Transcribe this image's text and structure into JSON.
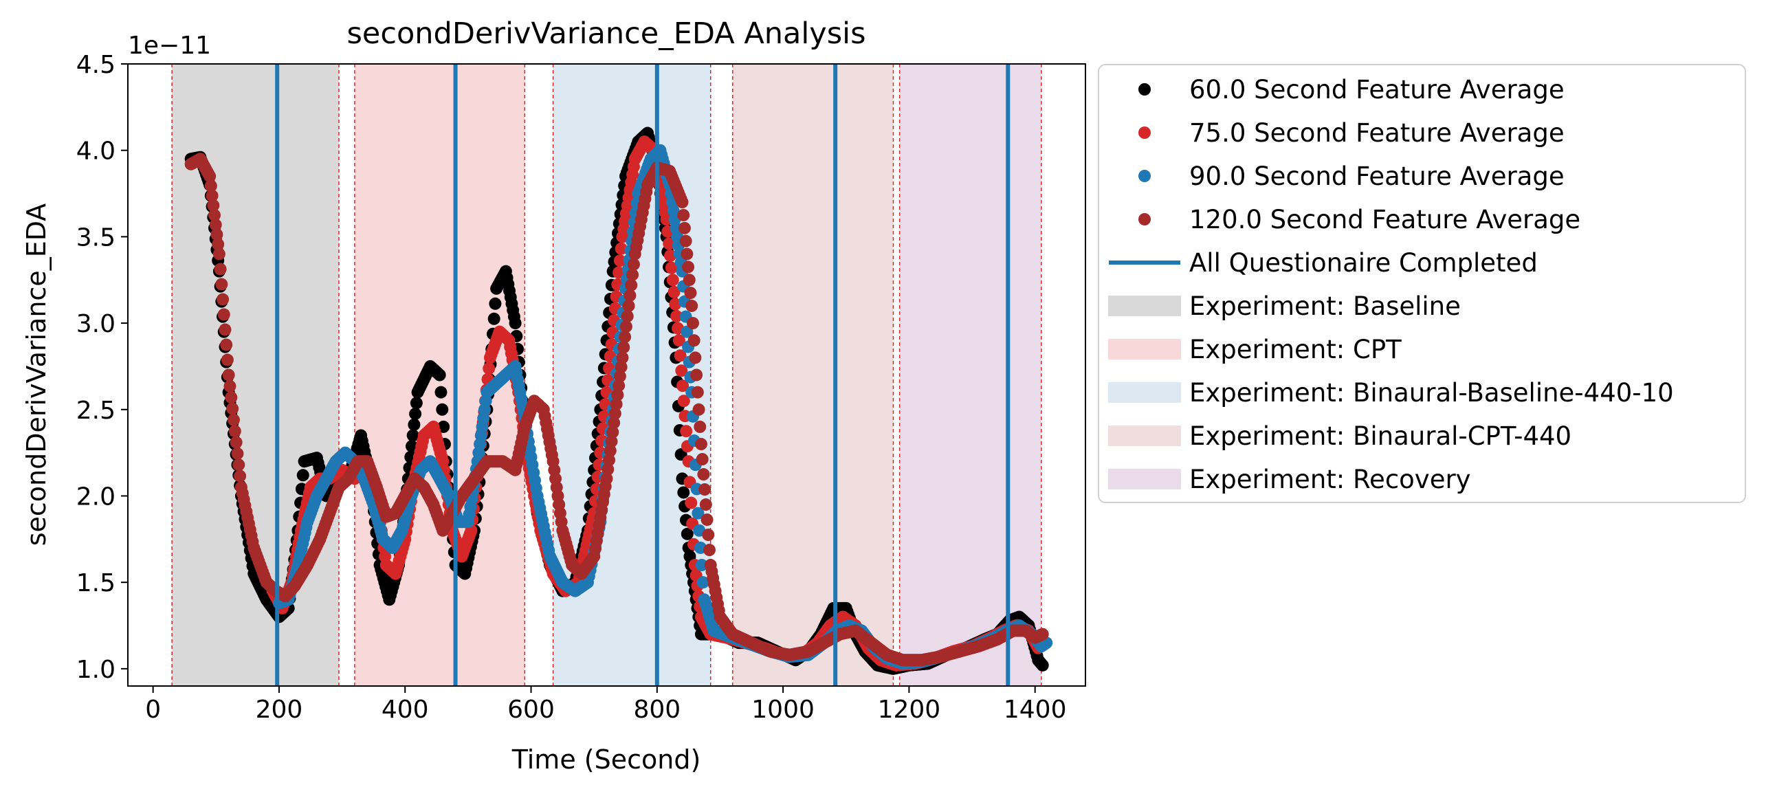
{
  "chart_data": {
    "type": "scatter",
    "title": "secondDerivVariance_EDA Analysis",
    "xlabel": "Time (Second)",
    "ylabel": "secondDerivVariance_EDA",
    "offset_label": "1e−11",
    "xlim": [
      -40,
      1480
    ],
    "ylim": [
      0.9,
      4.5
    ],
    "xticks": [
      0,
      200,
      400,
      600,
      800,
      1000,
      1200,
      1400
    ],
    "yticks": [
      1.0,
      1.5,
      2.0,
      2.5,
      3.0,
      3.5,
      4.0,
      4.5
    ],
    "grid": false,
    "legend_position": "outside-right",
    "phases": [
      {
        "name": "Experiment: Baseline",
        "start": 30,
        "end": 295,
        "color": "#d9d9d9"
      },
      {
        "name": "Experiment: CPT",
        "start": 320,
        "end": 590,
        "color": "#f8d8d9"
      },
      {
        "name": "Experiment: Binaural-Baseline-440-10",
        "start": 635,
        "end": 885,
        "color": "#dce8f2"
      },
      {
        "name": "Experiment: Binaural-CPT-440",
        "start": 920,
        "end": 1175,
        "color": "#efdedd"
      },
      {
        "name": "Experiment: Recovery",
        "start": 1185,
        "end": 1410,
        "color": "#eadbea"
      }
    ],
    "questionnaire_lines": {
      "name": "All Questionaire Completed",
      "x": [
        197,
        480,
        800,
        1083,
        1357
      ],
      "color": "#1f77b4"
    },
    "series": [
      {
        "name": "60.0 Second Feature Average",
        "color": "#000000",
        "points": [
          [
            60,
            3.95
          ],
          [
            75,
            3.96
          ],
          [
            90,
            3.8
          ],
          [
            105,
            3.3
          ],
          [
            120,
            2.6
          ],
          [
            140,
            2.0
          ],
          [
            160,
            1.55
          ],
          [
            180,
            1.4
          ],
          [
            200,
            1.3
          ],
          [
            215,
            1.35
          ],
          [
            230,
            1.8
          ],
          [
            240,
            2.2
          ],
          [
            260,
            2.22
          ],
          [
            275,
            2.0
          ],
          [
            290,
            2.05
          ],
          [
            310,
            2.1
          ],
          [
            330,
            2.35
          ],
          [
            345,
            2.1
          ],
          [
            360,
            1.6
          ],
          [
            375,
            1.4
          ],
          [
            390,
            1.6
          ],
          [
            405,
            2.1
          ],
          [
            420,
            2.6
          ],
          [
            440,
            2.75
          ],
          [
            455,
            2.7
          ],
          [
            465,
            2.2
          ],
          [
            480,
            1.6
          ],
          [
            495,
            1.55
          ],
          [
            510,
            1.8
          ],
          [
            530,
            2.5
          ],
          [
            545,
            3.2
          ],
          [
            560,
            3.3
          ],
          [
            575,
            3.0
          ],
          [
            590,
            2.4
          ],
          [
            610,
            1.9
          ],
          [
            630,
            1.6
          ],
          [
            650,
            1.45
          ],
          [
            670,
            1.5
          ],
          [
            690,
            1.8
          ],
          [
            710,
            2.5
          ],
          [
            730,
            3.3
          ],
          [
            750,
            3.85
          ],
          [
            770,
            4.05
          ],
          [
            785,
            4.1
          ],
          [
            800,
            3.9
          ],
          [
            815,
            3.5
          ],
          [
            830,
            2.8
          ],
          [
            840,
            2.1
          ],
          [
            850,
            1.7
          ],
          [
            860,
            1.45
          ],
          [
            870,
            1.2
          ],
          [
            900,
            1.2
          ],
          [
            930,
            1.15
          ],
          [
            960,
            1.15
          ],
          [
            990,
            1.1
          ],
          [
            1020,
            1.05
          ],
          [
            1040,
            1.1
          ],
          [
            1060,
            1.2
          ],
          [
            1080,
            1.35
          ],
          [
            1100,
            1.35
          ],
          [
            1115,
            1.2
          ],
          [
            1130,
            1.1
          ],
          [
            1150,
            1.02
          ],
          [
            1175,
            1.0
          ],
          [
            1200,
            1.02
          ],
          [
            1230,
            1.03
          ],
          [
            1260,
            1.08
          ],
          [
            1290,
            1.12
          ],
          [
            1320,
            1.17
          ],
          [
            1340,
            1.2
          ],
          [
            1360,
            1.28
          ],
          [
            1375,
            1.3
          ],
          [
            1390,
            1.25
          ],
          [
            1405,
            1.05
          ],
          [
            1412,
            1.02
          ]
        ]
      },
      {
        "name": "75.0 Second Feature Average",
        "color": "#d62728",
        "points": [
          [
            190,
            1.45
          ],
          [
            205,
            1.35
          ],
          [
            220,
            1.5
          ],
          [
            235,
            1.8
          ],
          [
            250,
            2.05
          ],
          [
            265,
            2.1
          ],
          [
            280,
            2.1
          ],
          [
            300,
            2.15
          ],
          [
            320,
            2.1
          ],
          [
            340,
            2.2
          ],
          [
            355,
            2.0
          ],
          [
            370,
            1.6
          ],
          [
            385,
            1.55
          ],
          [
            400,
            1.75
          ],
          [
            415,
            2.1
          ],
          [
            430,
            2.35
          ],
          [
            445,
            2.4
          ],
          [
            460,
            2.2
          ],
          [
            475,
            1.8
          ],
          [
            490,
            1.65
          ],
          [
            505,
            1.8
          ],
          [
            520,
            2.3
          ],
          [
            535,
            2.8
          ],
          [
            550,
            2.95
          ],
          [
            565,
            2.9
          ],
          [
            580,
            2.6
          ],
          [
            595,
            2.2
          ],
          [
            615,
            1.8
          ],
          [
            635,
            1.55
          ],
          [
            655,
            1.45
          ],
          [
            675,
            1.5
          ],
          [
            700,
            1.9
          ],
          [
            720,
            2.6
          ],
          [
            745,
            3.5
          ],
          [
            765,
            3.95
          ],
          [
            780,
            4.05
          ],
          [
            795,
            4.0
          ],
          [
            815,
            3.6
          ],
          [
            835,
            2.9
          ],
          [
            850,
            2.2
          ],
          [
            860,
            1.6
          ],
          [
            870,
            1.3
          ],
          [
            885,
            1.2
          ],
          [
            910,
            1.18
          ],
          [
            940,
            1.15
          ],
          [
            970,
            1.12
          ],
          [
            1000,
            1.08
          ],
          [
            1030,
            1.08
          ],
          [
            1055,
            1.15
          ],
          [
            1075,
            1.25
          ],
          [
            1095,
            1.3
          ],
          [
            1115,
            1.25
          ],
          [
            1135,
            1.12
          ],
          [
            1155,
            1.05
          ],
          [
            1180,
            1.02
          ],
          [
            1210,
            1.03
          ],
          [
            1240,
            1.06
          ],
          [
            1270,
            1.1
          ],
          [
            1300,
            1.13
          ],
          [
            1330,
            1.18
          ],
          [
            1350,
            1.22
          ],
          [
            1370,
            1.25
          ],
          [
            1390,
            1.22
          ],
          [
            1405,
            1.12
          ],
          [
            1415,
            1.15
          ]
        ]
      },
      {
        "name": "90.0 Second Feature Average",
        "color": "#1f77b4",
        "points": [
          [
            200,
            1.38
          ],
          [
            215,
            1.4
          ],
          [
            230,
            1.6
          ],
          [
            245,
            1.85
          ],
          [
            260,
            2.0
          ],
          [
            275,
            2.1
          ],
          [
            290,
            2.2
          ],
          [
            305,
            2.25
          ],
          [
            320,
            2.2
          ],
          [
            335,
            2.1
          ],
          [
            350,
            1.95
          ],
          [
            365,
            1.75
          ],
          [
            380,
            1.7
          ],
          [
            395,
            1.8
          ],
          [
            410,
            2.0
          ],
          [
            425,
            2.15
          ],
          [
            440,
            2.2
          ],
          [
            455,
            2.1
          ],
          [
            470,
            2.0
          ],
          [
            485,
            1.85
          ],
          [
            500,
            1.85
          ],
          [
            515,
            2.2
          ],
          [
            530,
            2.6
          ],
          [
            545,
            2.65
          ],
          [
            560,
            2.7
          ],
          [
            575,
            2.75
          ],
          [
            590,
            2.45
          ],
          [
            610,
            2.0
          ],
          [
            630,
            1.65
          ],
          [
            650,
            1.5
          ],
          [
            670,
            1.45
          ],
          [
            690,
            1.5
          ],
          [
            710,
            1.85
          ],
          [
            730,
            2.5
          ],
          [
            750,
            3.2
          ],
          [
            770,
            3.75
          ],
          [
            790,
            3.95
          ],
          [
            805,
            4.0
          ],
          [
            820,
            3.8
          ],
          [
            840,
            3.3
          ],
          [
            855,
            2.6
          ],
          [
            865,
            1.9
          ],
          [
            875,
            1.4
          ],
          [
            890,
            1.22
          ],
          [
            920,
            1.18
          ],
          [
            950,
            1.14
          ],
          [
            980,
            1.1
          ],
          [
            1010,
            1.07
          ],
          [
            1040,
            1.08
          ],
          [
            1065,
            1.15
          ],
          [
            1085,
            1.22
          ],
          [
            1105,
            1.25
          ],
          [
            1125,
            1.22
          ],
          [
            1145,
            1.12
          ],
          [
            1165,
            1.06
          ],
          [
            1190,
            1.03
          ],
          [
            1220,
            1.04
          ],
          [
            1250,
            1.07
          ],
          [
            1280,
            1.1
          ],
          [
            1310,
            1.14
          ],
          [
            1335,
            1.18
          ],
          [
            1355,
            1.22
          ],
          [
            1375,
            1.25
          ],
          [
            1395,
            1.2
          ],
          [
            1410,
            1.13
          ],
          [
            1418,
            1.15
          ]
        ]
      },
      {
        "name": "120.0 Second Feature Average",
        "color": "#a52a2a",
        "points": [
          [
            60,
            3.92
          ],
          [
            75,
            3.95
          ],
          [
            90,
            3.85
          ],
          [
            105,
            3.4
          ],
          [
            120,
            2.7
          ],
          [
            140,
            2.05
          ],
          [
            160,
            1.7
          ],
          [
            180,
            1.5
          ],
          [
            195,
            1.45
          ],
          [
            210,
            1.42
          ],
          [
            225,
            1.48
          ],
          [
            245,
            1.6
          ],
          [
            265,
            1.75
          ],
          [
            280,
            1.9
          ],
          [
            295,
            2.05
          ],
          [
            310,
            2.1
          ],
          [
            325,
            2.2
          ],
          [
            340,
            2.2
          ],
          [
            355,
            2.05
          ],
          [
            370,
            1.88
          ],
          [
            385,
            1.9
          ],
          [
            400,
            2.0
          ],
          [
            415,
            2.1
          ],
          [
            430,
            2.05
          ],
          [
            445,
            1.95
          ],
          [
            460,
            1.8
          ],
          [
            475,
            1.9
          ],
          [
            490,
            2.0
          ],
          [
            510,
            2.1
          ],
          [
            530,
            2.2
          ],
          [
            555,
            2.2
          ],
          [
            575,
            2.15
          ],
          [
            590,
            2.4
          ],
          [
            605,
            2.55
          ],
          [
            620,
            2.5
          ],
          [
            635,
            2.2
          ],
          [
            650,
            1.8
          ],
          [
            665,
            1.6
          ],
          [
            680,
            1.55
          ],
          [
            700,
            1.65
          ],
          [
            720,
            2.1
          ],
          [
            745,
            2.8
          ],
          [
            765,
            3.4
          ],
          [
            785,
            3.8
          ],
          [
            800,
            3.9
          ],
          [
            820,
            3.88
          ],
          [
            840,
            3.7
          ],
          [
            855,
            3.1
          ],
          [
            870,
            2.3
          ],
          [
            885,
            1.6
          ],
          [
            900,
            1.3
          ],
          [
            920,
            1.2
          ],
          [
            950,
            1.15
          ],
          [
            980,
            1.1
          ],
          [
            1010,
            1.08
          ],
          [
            1040,
            1.1
          ],
          [
            1065,
            1.15
          ],
          [
            1090,
            1.2
          ],
          [
            1115,
            1.22
          ],
          [
            1140,
            1.15
          ],
          [
            1165,
            1.08
          ],
          [
            1190,
            1.05
          ],
          [
            1220,
            1.05
          ],
          [
            1250,
            1.07
          ],
          [
            1280,
            1.1
          ],
          [
            1310,
            1.13
          ],
          [
            1340,
            1.17
          ],
          [
            1365,
            1.22
          ],
          [
            1385,
            1.22
          ],
          [
            1400,
            1.18
          ],
          [
            1412,
            1.2
          ]
        ]
      }
    ]
  }
}
